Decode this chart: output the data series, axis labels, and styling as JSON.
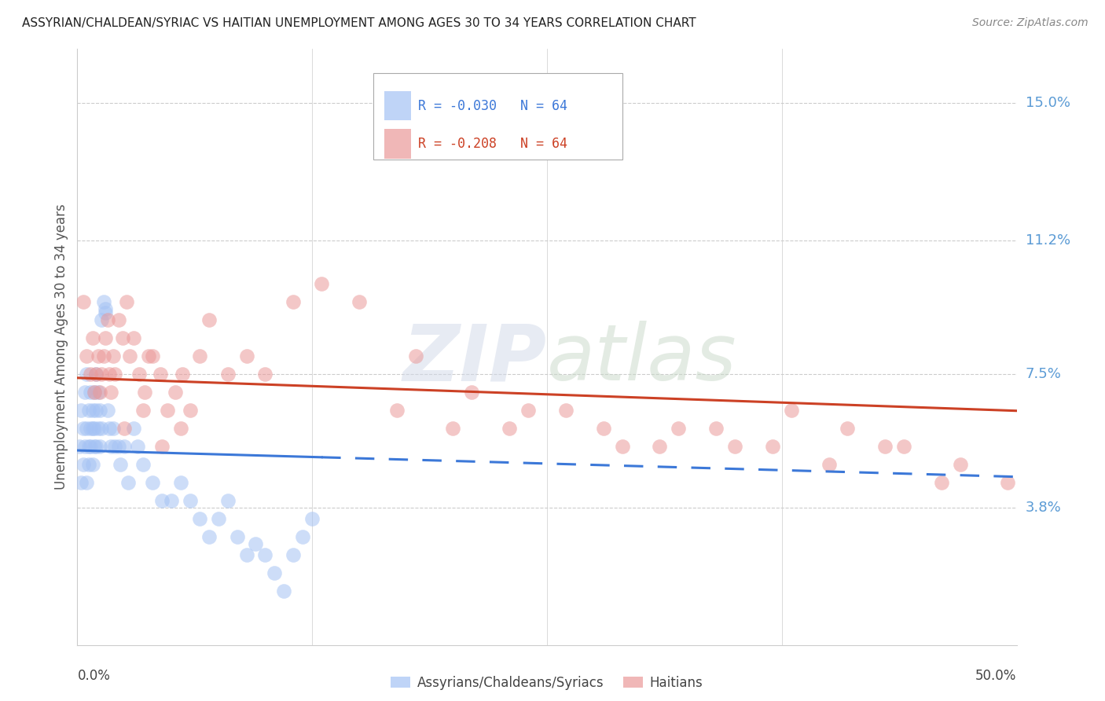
{
  "title": "ASSYRIAN/CHALDEAN/SYRIAC VS HAITIAN UNEMPLOYMENT AMONG AGES 30 TO 34 YEARS CORRELATION CHART",
  "source": "Source: ZipAtlas.com",
  "ylabel": "Unemployment Among Ages 30 to 34 years",
  "ytick_labels": [
    "3.8%",
    "7.5%",
    "11.2%",
    "15.0%"
  ],
  "ytick_values": [
    0.038,
    0.075,
    0.112,
    0.15
  ],
  "xlim": [
    0.0,
    0.5
  ],
  "ylim": [
    0.0,
    0.165
  ],
  "legend_label1": "Assyrians/Chaldeans/Syriacs",
  "legend_label2": "Haitians",
  "blue_color": "#a4c2f4",
  "pink_color": "#ea9999",
  "blue_line_color": "#3c78d8",
  "pink_line_color": "#cc4125",
  "blue_R": -0.03,
  "blue_N": 64,
  "pink_R": -0.208,
  "pink_N": 64,
  "blue_x": [
    0.001,
    0.002,
    0.002,
    0.003,
    0.003,
    0.004,
    0.004,
    0.005,
    0.005,
    0.005,
    0.006,
    0.006,
    0.006,
    0.007,
    0.007,
    0.007,
    0.008,
    0.008,
    0.008,
    0.009,
    0.009,
    0.009,
    0.01,
    0.01,
    0.01,
    0.011,
    0.011,
    0.012,
    0.012,
    0.013,
    0.013,
    0.014,
    0.015,
    0.015,
    0.016,
    0.017,
    0.018,
    0.019,
    0.02,
    0.022,
    0.023,
    0.025,
    0.027,
    0.03,
    0.032,
    0.035,
    0.04,
    0.045,
    0.05,
    0.055,
    0.06,
    0.065,
    0.07,
    0.075,
    0.08,
    0.085,
    0.09,
    0.095,
    0.1,
    0.105,
    0.11,
    0.115,
    0.12,
    0.125
  ],
  "blue_y": [
    0.055,
    0.045,
    0.065,
    0.05,
    0.06,
    0.055,
    0.07,
    0.045,
    0.06,
    0.075,
    0.05,
    0.065,
    0.055,
    0.06,
    0.07,
    0.055,
    0.05,
    0.065,
    0.06,
    0.055,
    0.07,
    0.06,
    0.065,
    0.055,
    0.075,
    0.06,
    0.07,
    0.065,
    0.055,
    0.06,
    0.09,
    0.095,
    0.092,
    0.093,
    0.065,
    0.06,
    0.055,
    0.06,
    0.055,
    0.055,
    0.05,
    0.055,
    0.045,
    0.06,
    0.055,
    0.05,
    0.045,
    0.04,
    0.04,
    0.045,
    0.04,
    0.035,
    0.03,
    0.035,
    0.04,
    0.03,
    0.025,
    0.028,
    0.025,
    0.02,
    0.015,
    0.025,
    0.03,
    0.035
  ],
  "pink_x": [
    0.003,
    0.005,
    0.007,
    0.008,
    0.009,
    0.01,
    0.011,
    0.012,
    0.013,
    0.014,
    0.015,
    0.016,
    0.017,
    0.018,
    0.019,
    0.02,
    0.022,
    0.024,
    0.026,
    0.028,
    0.03,
    0.033,
    0.036,
    0.038,
    0.04,
    0.044,
    0.048,
    0.052,
    0.056,
    0.06,
    0.065,
    0.07,
    0.08,
    0.09,
    0.1,
    0.115,
    0.13,
    0.15,
    0.17,
    0.2,
    0.23,
    0.26,
    0.29,
    0.32,
    0.35,
    0.38,
    0.41,
    0.44,
    0.47,
    0.495,
    0.18,
    0.21,
    0.24,
    0.28,
    0.31,
    0.34,
    0.37,
    0.4,
    0.43,
    0.46,
    0.025,
    0.035,
    0.045,
    0.055
  ],
  "pink_y": [
    0.095,
    0.08,
    0.075,
    0.085,
    0.07,
    0.075,
    0.08,
    0.07,
    0.075,
    0.08,
    0.085,
    0.09,
    0.075,
    0.07,
    0.08,
    0.075,
    0.09,
    0.085,
    0.095,
    0.08,
    0.085,
    0.075,
    0.07,
    0.08,
    0.08,
    0.075,
    0.065,
    0.07,
    0.075,
    0.065,
    0.08,
    0.09,
    0.075,
    0.08,
    0.075,
    0.095,
    0.1,
    0.095,
    0.065,
    0.06,
    0.06,
    0.065,
    0.055,
    0.06,
    0.055,
    0.065,
    0.06,
    0.055,
    0.05,
    0.045,
    0.08,
    0.07,
    0.065,
    0.06,
    0.055,
    0.06,
    0.055,
    0.05,
    0.055,
    0.045,
    0.06,
    0.065,
    0.055,
    0.06
  ]
}
